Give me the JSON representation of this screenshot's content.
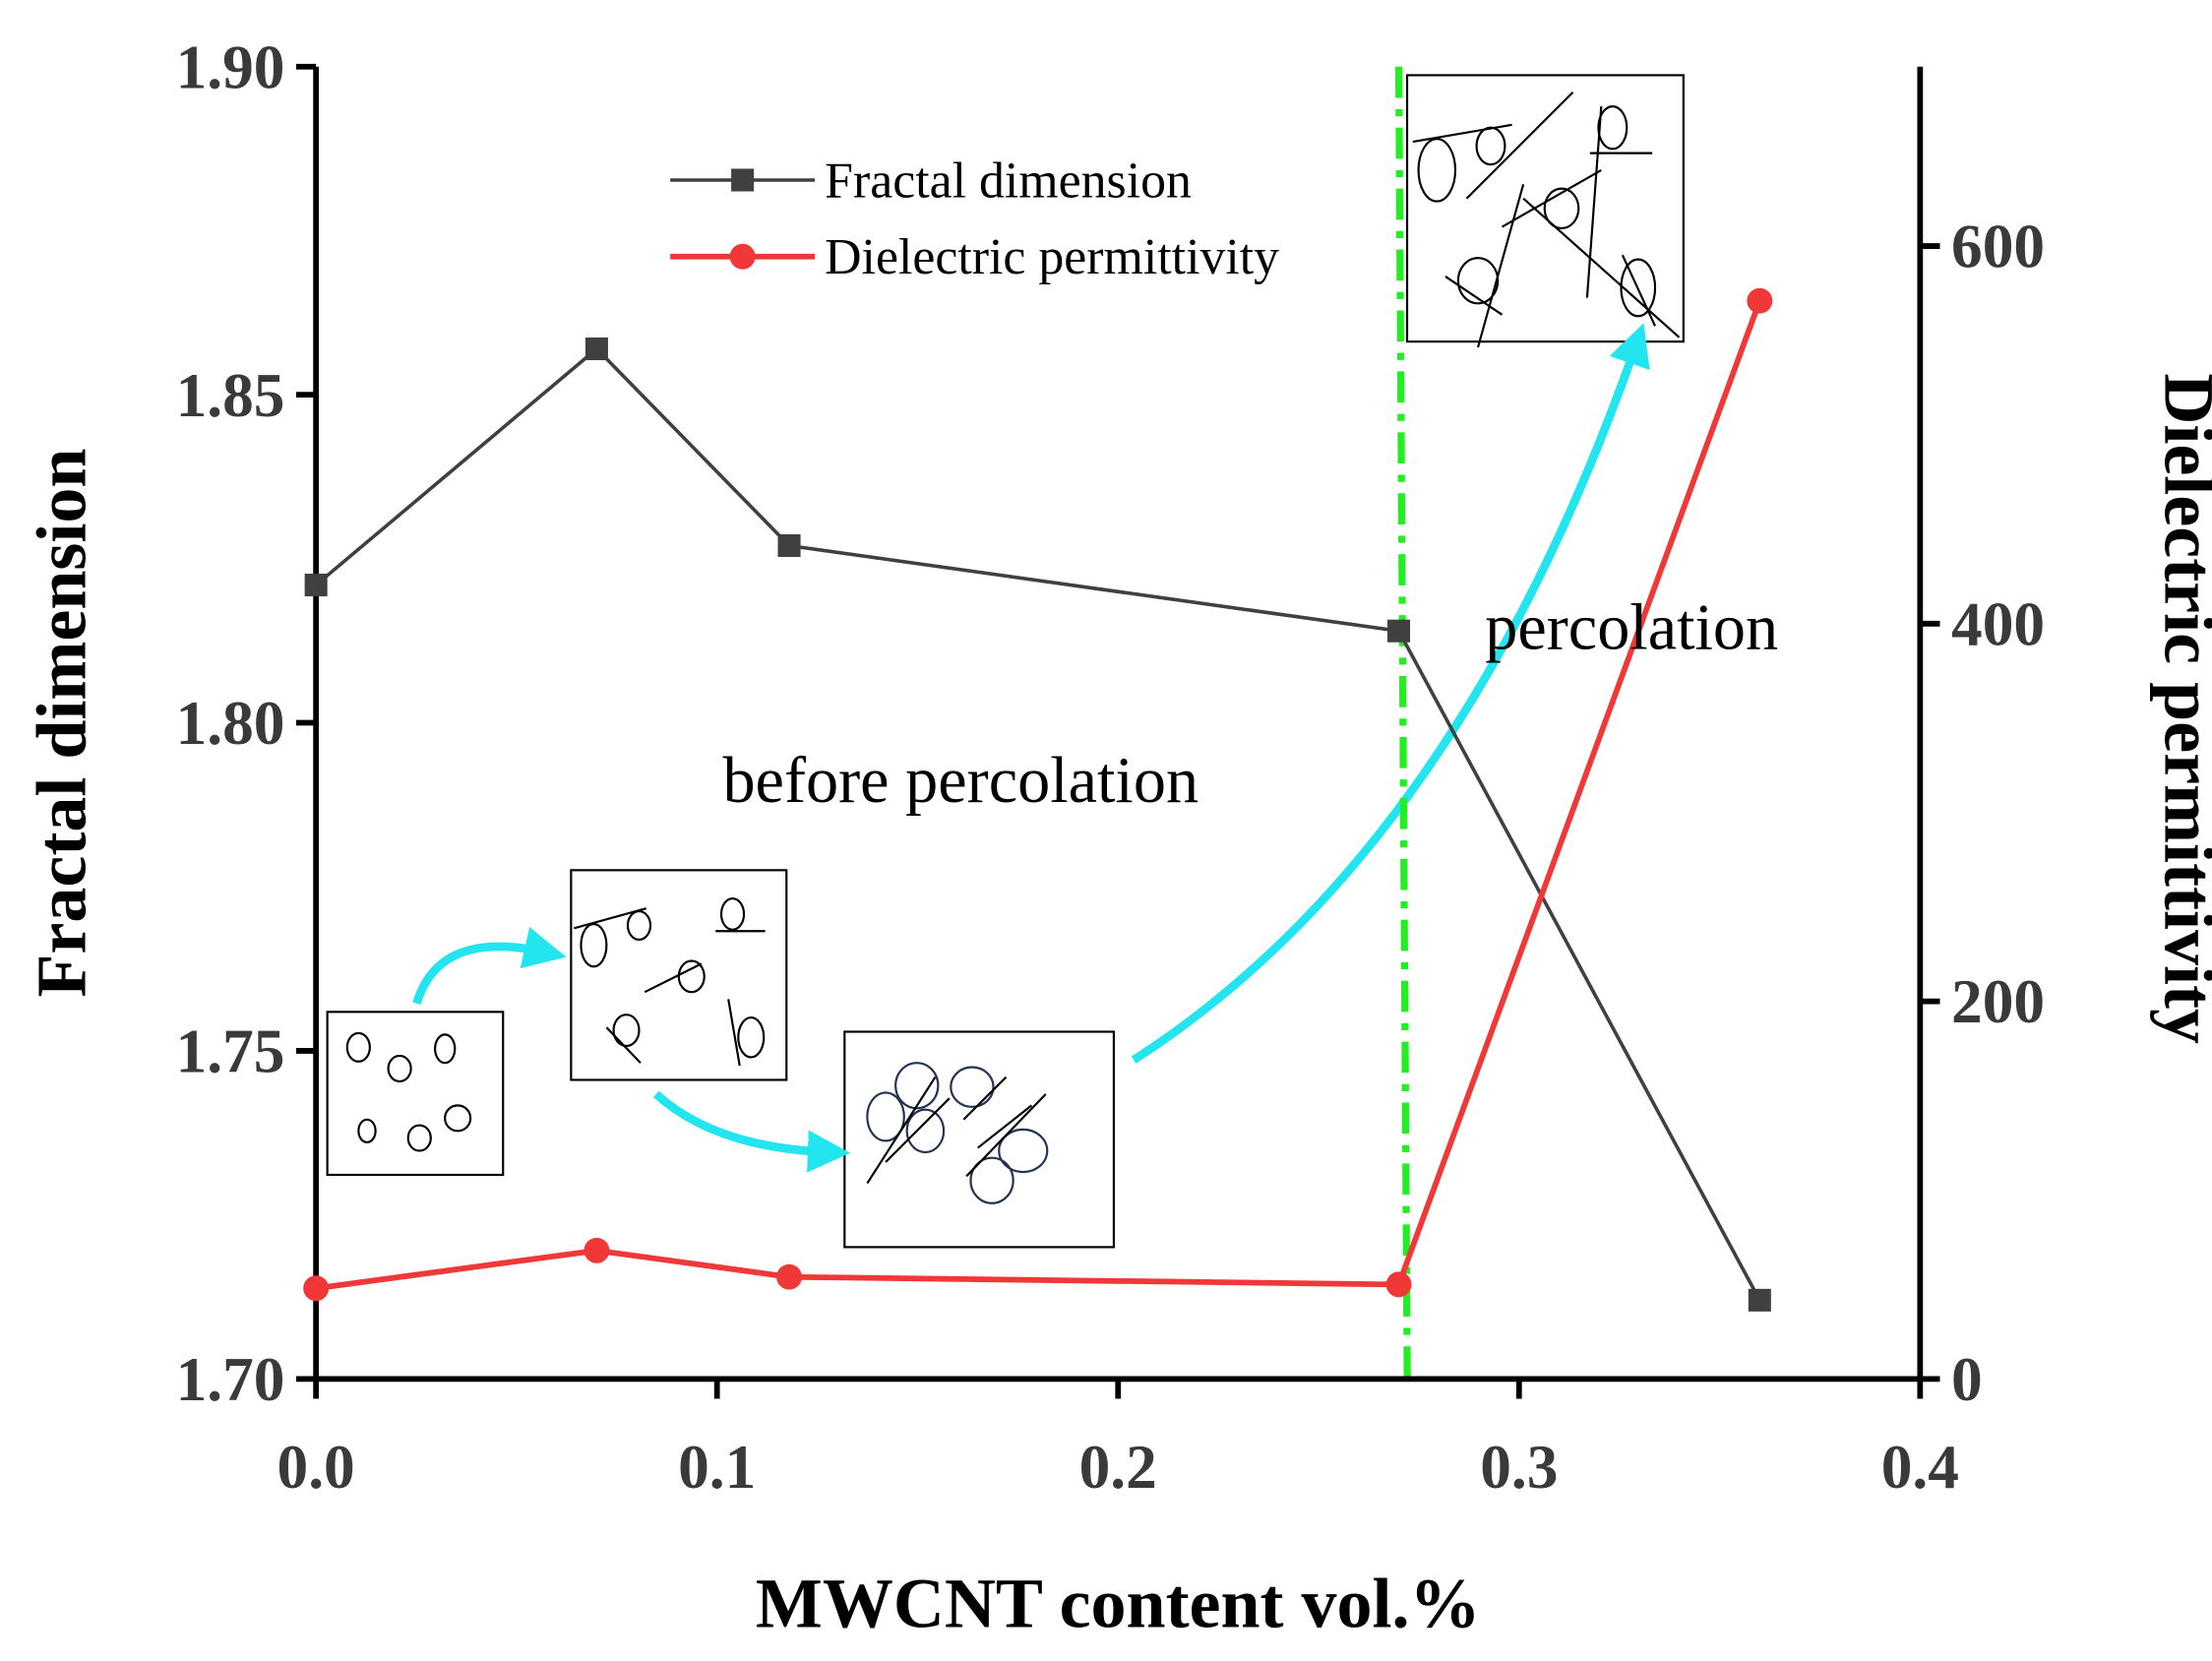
{
  "chart_data": {
    "type": "line",
    "x_label": "MWCNT content vol.%",
    "y_label": "Fractal dimension",
    "y2_label": "Dielectric permittivity",
    "x": [
      0,
      0.07,
      0.118,
      0.27,
      0.36
    ],
    "series": [
      {
        "name": "Fractal dimension",
        "color": "#404040",
        "marker": "square",
        "values": [
          1.821,
          1.857,
          1.827,
          1.814,
          1.712
        ]
      },
      {
        "name": "Dielectric permittivity",
        "color": "#f03838",
        "marker": "circle",
        "axis": "y2",
        "values": [
          48,
          68,
          54,
          50,
          571
        ]
      }
    ],
    "xlim": [
      0,
      0.4
    ],
    "xticks": [
      {
        "value": 0,
        "label": "0.0"
      },
      0.1,
      0.2,
      0.3,
      0.4
    ],
    "ylim": [
      1.7,
      1.9
    ],
    "yticks": [
      {
        "value": 1.7,
        "label": "1.70"
      },
      1.75,
      {
        "value": 1.8,
        "label": "1.80"
      },
      1.85,
      {
        "value": 1.9,
        "label": "1.90"
      }
    ],
    "y2lim": [
      0,
      695
    ],
    "y2ticks": [
      0,
      200,
      400,
      600
    ],
    "percolation_line_x": 0.27,
    "annotations": [
      "before percolation",
      "percolation"
    ],
    "legend": "top"
  }
}
